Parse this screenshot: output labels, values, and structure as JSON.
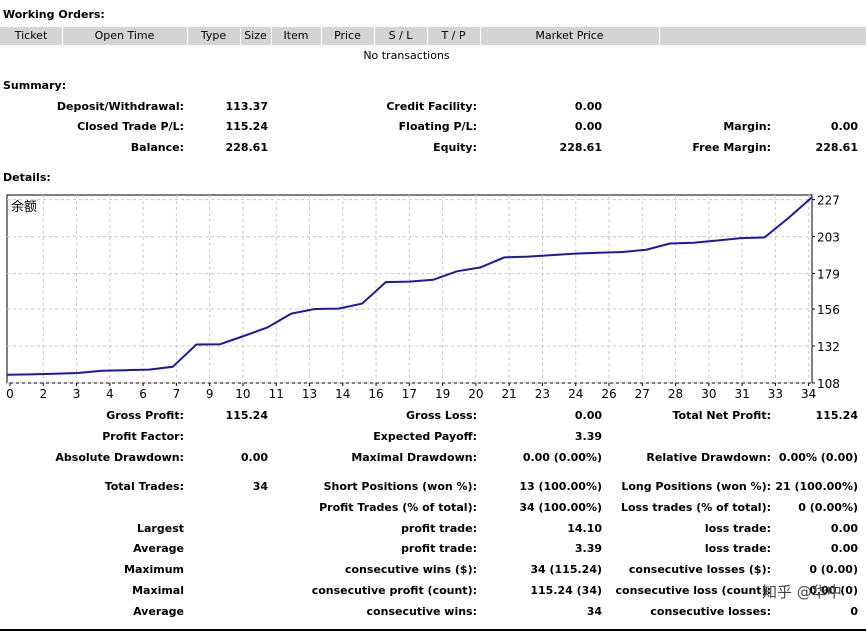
{
  "working_orders": {
    "title": "Working Orders:",
    "columns": [
      "Ticket",
      "Open Time",
      "Type",
      "Size",
      "Item",
      "Price",
      "S / L",
      "T / P",
      "Market Price",
      ""
    ],
    "empty_text": "No transactions"
  },
  "summary": {
    "title": "Summary:",
    "rows": [
      [
        {
          "label": "Deposit/Withdrawal:",
          "value": "113.37"
        },
        {
          "label": "Credit Facility:",
          "value": "0.00"
        },
        {
          "label": "",
          "value": ""
        }
      ],
      [
        {
          "label": "Closed Trade P/L:",
          "value": "115.24"
        },
        {
          "label": "Floating P/L:",
          "value": "0.00"
        },
        {
          "label": "Margin:",
          "value": "0.00"
        }
      ],
      [
        {
          "label": "Balance:",
          "value": "228.61"
        },
        {
          "label": "Equity:",
          "value": "228.61"
        },
        {
          "label": "Free Margin:",
          "value": "228.61"
        }
      ]
    ]
  },
  "details": {
    "title": "Details:"
  },
  "chart_data": {
    "type": "line",
    "title": "余额",
    "x": [
      0,
      1,
      2,
      3,
      4,
      5,
      6,
      7,
      8,
      9,
      10,
      11,
      12,
      13,
      14,
      15,
      16,
      17,
      18,
      19,
      20,
      21,
      22,
      23,
      24,
      25,
      26,
      27,
      28,
      29,
      30,
      31,
      32,
      33,
      34
    ],
    "series": [
      {
        "values": [
          113.4,
          113.6,
          114.0,
          114.5,
          116.0,
          116.3,
          116.7,
          118.5,
          133.0,
          133.2,
          138.5,
          144.0,
          153.0,
          156.0,
          156.3,
          159.5,
          173.5,
          173.8,
          175.0,
          180.5,
          183.0,
          189.5,
          190.0,
          191.0,
          192.0,
          192.5,
          193.0,
          194.5,
          198.5,
          199.0,
          200.5,
          202.0,
          202.5,
          215.0,
          228.6
        ]
      }
    ],
    "x_ticks": [
      "0",
      "2",
      "3",
      "4",
      "6",
      "7",
      "9",
      "10",
      "11",
      "13",
      "14",
      "16",
      "17",
      "19",
      "20",
      "21",
      "23",
      "24",
      "26",
      "27",
      "28",
      "30",
      "31",
      "33",
      "34"
    ],
    "y_ticks": [
      "108",
      "132",
      "156",
      "179",
      "203",
      "227"
    ],
    "ylim": [
      108,
      230
    ],
    "grid": true,
    "line_color": "#1a1aa8"
  },
  "stats": {
    "rows": [
      [
        {
          "label": "Gross Profit:",
          "value": "115.24"
        },
        {
          "label": "Gross Loss:",
          "value": "0.00"
        },
        {
          "label": "Total Net Profit:",
          "value": "115.24"
        }
      ],
      [
        {
          "label": "Profit Factor:",
          "value": ""
        },
        {
          "label": "Expected Payoff:",
          "value": "3.39"
        },
        {
          "label": "",
          "value": ""
        }
      ],
      [
        {
          "label": "Absolute Drawdown:",
          "value": "0.00"
        },
        {
          "label": "Maximal Drawdown:",
          "value": "0.00 (0.00%)"
        },
        {
          "label": "Relative Drawdown:",
          "value": "0.00% (0.00)"
        }
      ],
      [
        {
          "label": "Total Trades:",
          "value": "34"
        },
        {
          "label": "Short Positions (won %):",
          "value": "13 (100.00%)"
        },
        {
          "label": "Long Positions (won %):",
          "value": "21 (100.00%)"
        }
      ],
      [
        {
          "label": "",
          "value": ""
        },
        {
          "label": "Profit Trades (% of total):",
          "value": "34 (100.00%)"
        },
        {
          "label": "Loss trades (% of total):",
          "value": "0 (0.00%)"
        }
      ],
      [
        {
          "label": "Largest",
          "value": ""
        },
        {
          "label": "profit trade:",
          "value": "14.10"
        },
        {
          "label": "loss trade:",
          "value": "0.00"
        }
      ],
      [
        {
          "label": "Average",
          "value": ""
        },
        {
          "label": "profit trade:",
          "value": "3.39"
        },
        {
          "label": "loss trade:",
          "value": "0.00"
        }
      ],
      [
        {
          "label": "Maximum",
          "value": ""
        },
        {
          "label": "consecutive wins ($):",
          "value": "34 (115.24)"
        },
        {
          "label": "consecutive losses ($):",
          "value": "0 (0.00)"
        }
      ],
      [
        {
          "label": "Maximal",
          "value": ""
        },
        {
          "label": "consecutive profit (count):",
          "value": "115.24 (34)"
        },
        {
          "label": "consecutive loss (count):",
          "value": "0.00 (0)"
        }
      ],
      [
        {
          "label": "Average",
          "value": ""
        },
        {
          "label": "consecutive wins:",
          "value": "34"
        },
        {
          "label": "consecutive losses:",
          "value": "0"
        }
      ]
    ]
  },
  "watermark": "知乎 @华中"
}
